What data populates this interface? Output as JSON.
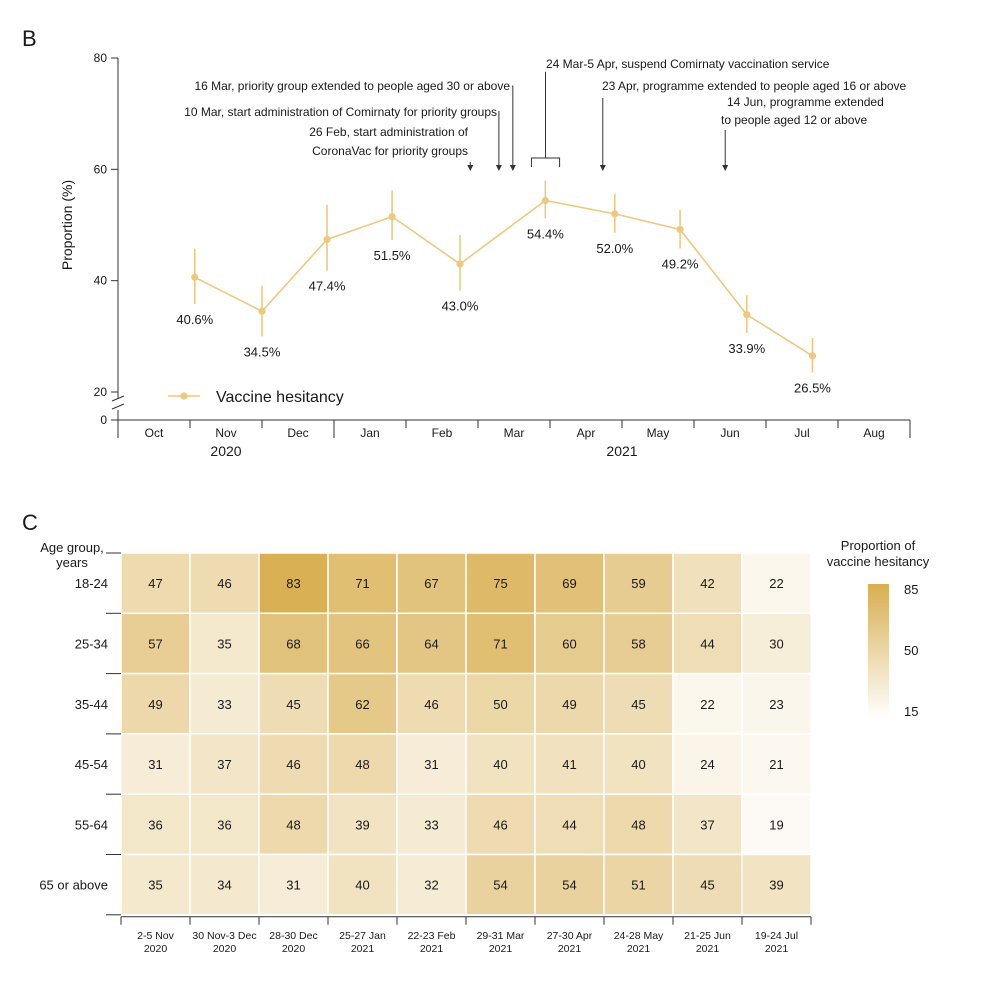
{
  "panels": {
    "b_label": "B",
    "c_label": "C"
  },
  "colors": {
    "line": "#ECC97E",
    "heat_high": "#D8AE4F",
    "heat_low": "#FFFFFF",
    "axis": "#333333",
    "text": "#1a1a1a"
  },
  "chart_data": [
    {
      "type": "line",
      "panel": "B",
      "ylabel": "Proportion (%)",
      "ylim": [
        20,
        80
      ],
      "y_ticks": [
        "0",
        "20",
        "40",
        "60",
        "80"
      ],
      "y_axis_break": true,
      "x_months": [
        "Oct",
        "Nov",
        "Dec",
        "Jan",
        "Feb",
        "Mar",
        "Apr",
        "May",
        "Jun",
        "Jul",
        "Aug"
      ],
      "x_years": [
        {
          "label": "2020",
          "from": "Oct",
          "to": "Dec"
        },
        {
          "label": "2021",
          "from": "Jan",
          "to": "Aug"
        }
      ],
      "legend": {
        "label": "Vaccine hesitancy",
        "position": "bottom-left"
      },
      "series": [
        {
          "name": "Vaccine hesitancy",
          "x": [
            "2020-11-03",
            "2020-12-01",
            "2020-12-29",
            "2021-01-26",
            "2021-02-22",
            "2021-03-30",
            "2021-04-28",
            "2021-05-26",
            "2021-06-23",
            "2021-07-21"
          ],
          "values": [
            40.6,
            34.5,
            47.4,
            51.5,
            43.0,
            54.4,
            52.0,
            49.2,
            33.9,
            26.5
          ],
          "labels": [
            "40.6%",
            "34.5%",
            "47.4%",
            "51.5%",
            "43.0%",
            "54.4%",
            "52.0%",
            "49.2%",
            "33.9%",
            "26.5%"
          ],
          "ci_low": [
            35.8,
            30.0,
            41.8,
            47.3,
            38.2,
            51.2,
            48.6,
            45.8,
            30.6,
            23.5
          ],
          "ci_high": [
            45.7,
            39.1,
            53.6,
            56.2,
            48.2,
            58.0,
            55.6,
            52.7,
            37.4,
            29.7
          ]
        }
      ],
      "annotations": [
        {
          "lines": [
            "26 Feb, start administration of",
            "CoronaVac for priority groups"
          ],
          "date": "2021-02-26",
          "kind": "arrow"
        },
        {
          "lines": [
            "10 Mar, start administration of Comirnaty for priority groups"
          ],
          "date": "2021-03-10",
          "kind": "arrow"
        },
        {
          "lines": [
            "16 Mar, priority group extended to people aged 30 or above"
          ],
          "date": "2021-03-16",
          "kind": "arrow"
        },
        {
          "lines": [
            "24 Mar-5 Apr, suspend Comirnaty vaccination service"
          ],
          "date": "2021-03-24",
          "date_end": "2021-04-05",
          "kind": "bracket"
        },
        {
          "lines": [
            "23 Apr, programme extended to people aged 16 or above"
          ],
          "date": "2021-04-23",
          "kind": "arrow"
        },
        {
          "lines": [
            "14 Jun, programme extended",
            "to people aged 12 or above"
          ],
          "date": "2021-06-14",
          "kind": "arrow"
        }
      ]
    },
    {
      "type": "heatmap",
      "panel": "C",
      "y_title": [
        "Age group,",
        "years"
      ],
      "rows": [
        "18-24",
        "25-34",
        "35-44",
        "45-54",
        "55-64",
        "65 or above"
      ],
      "columns": [
        [
          "2-5 Nov",
          "2020"
        ],
        [
          "30 Nov-3 Dec",
          "2020"
        ],
        [
          "28-30 Dec",
          "2020"
        ],
        [
          "25-27 Jan",
          "2021"
        ],
        [
          "22-23 Feb",
          "2021"
        ],
        [
          "29-31 Mar",
          "2021"
        ],
        [
          "27-30 Apr",
          "2021"
        ],
        [
          "24-28 May",
          "2021"
        ],
        [
          "21-25 Jun",
          "2021"
        ],
        [
          "19-24 Jul",
          "2021"
        ]
      ],
      "values": [
        [
          47,
          46,
          83,
          71,
          67,
          75,
          69,
          59,
          42,
          22
        ],
        [
          57,
          35,
          68,
          66,
          64,
          71,
          60,
          58,
          44,
          30
        ],
        [
          49,
          33,
          45,
          62,
          46,
          50,
          49,
          45,
          22,
          23
        ],
        [
          31,
          37,
          46,
          48,
          31,
          40,
          41,
          40,
          24,
          21
        ],
        [
          36,
          36,
          48,
          39,
          33,
          46,
          44,
          48,
          37,
          19
        ],
        [
          35,
          34,
          31,
          40,
          32,
          54,
          54,
          51,
          45,
          39
        ]
      ],
      "colorbar": {
        "title": [
          "Proportion of",
          "vaccine hesitancy"
        ],
        "ticks": [
          85,
          50,
          15
        ],
        "min": 15,
        "max": 85
      }
    }
  ]
}
